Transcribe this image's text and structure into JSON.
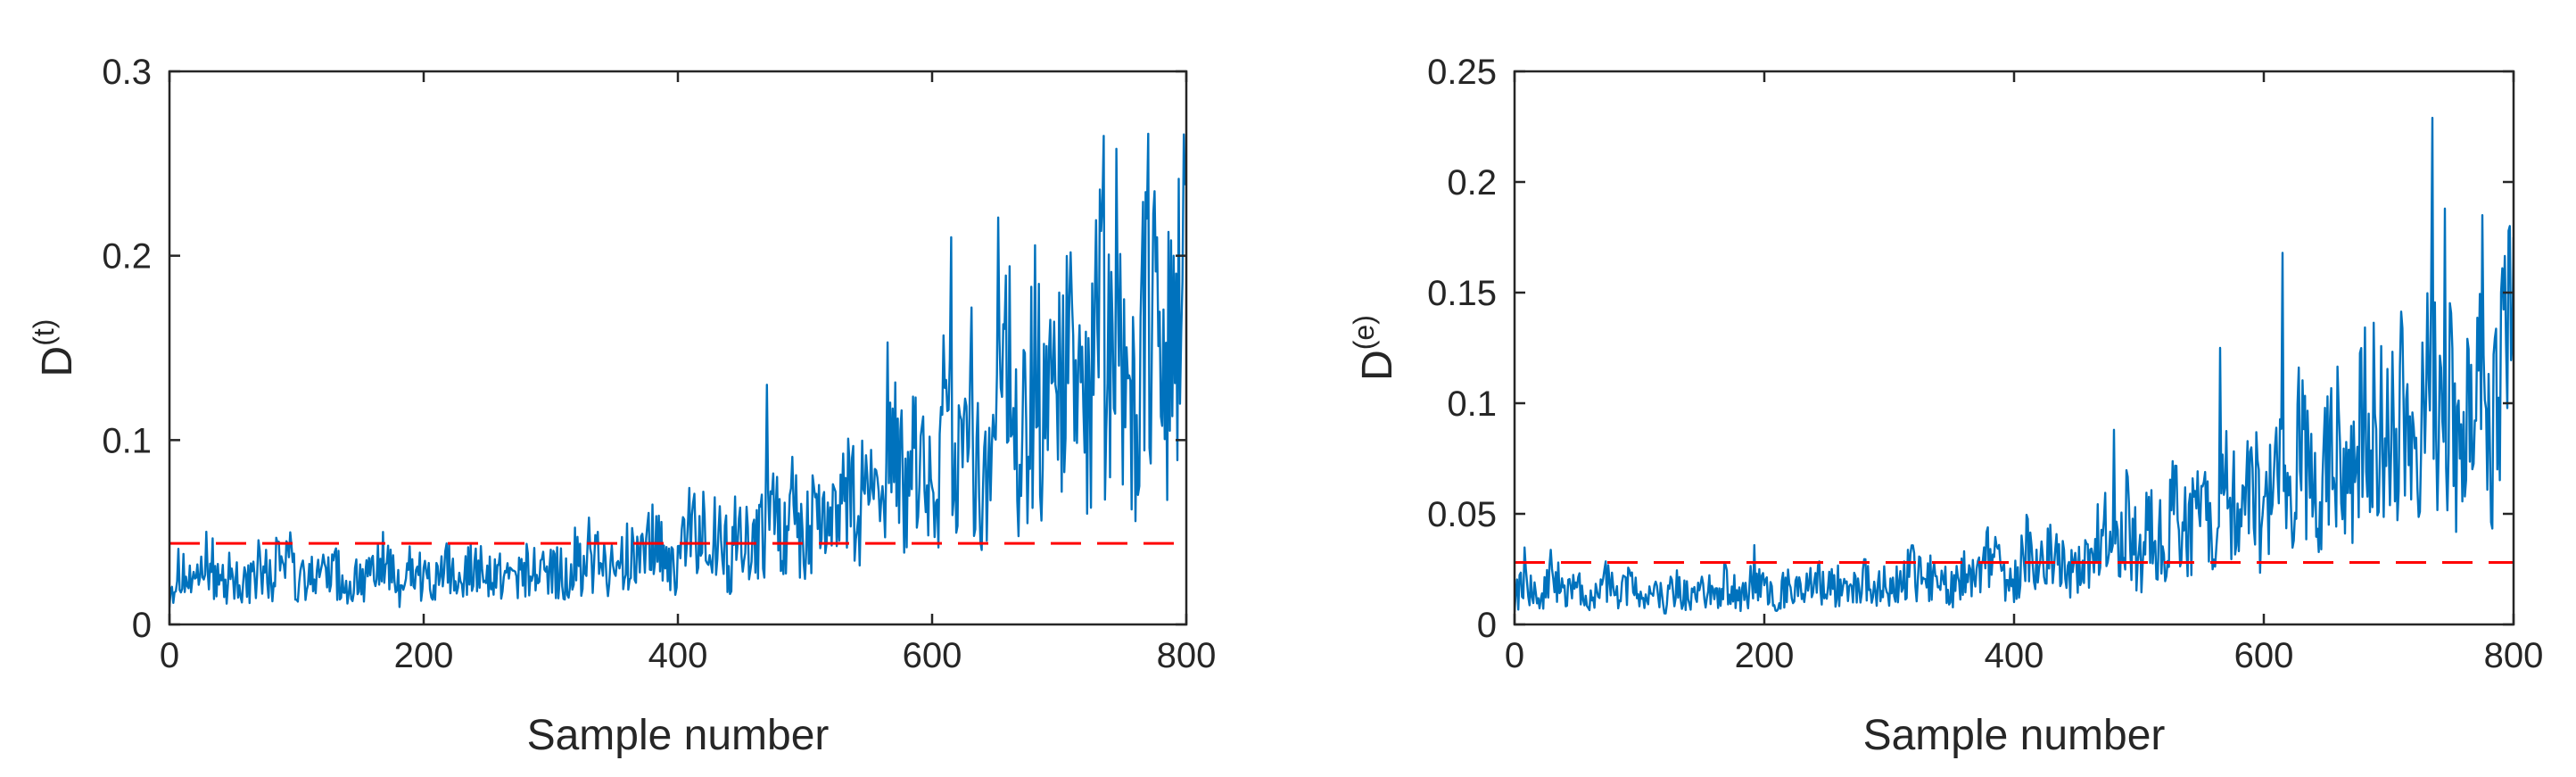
{
  "chart_data": [
    {
      "type": "line",
      "title": "",
      "xlabel": "Sample number",
      "ylabel": "D",
      "ylabel_sup": "(t)",
      "xlim": [
        0,
        800
      ],
      "ylim": [
        0,
        0.3
      ],
      "xticks": [
        0,
        200,
        400,
        600,
        800
      ],
      "xtick_labels": [
        "0",
        "200",
        "400",
        "600",
        "800"
      ],
      "yticks": [
        0,
        0.1,
        0.2,
        0.3
      ],
      "ytick_labels": [
        "0",
        "0.1",
        "0.2",
        "0.3"
      ],
      "grid": false,
      "series": [
        {
          "color": "#0072bd",
          "style": "solid",
          "x": [
            0,
            10,
            20,
            30,
            40,
            50,
            60,
            70,
            80,
            90,
            100,
            110,
            120,
            130,
            140,
            150,
            160,
            170,
            180,
            190,
            200,
            210,
            220,
            230,
            240,
            250,
            260,
            270,
            280,
            290,
            300,
            310,
            320,
            330,
            340,
            350,
            360,
            370,
            380,
            390,
            400,
            410,
            420,
            430,
            440,
            450,
            460,
            470,
            480,
            490,
            500,
            510,
            520,
            530,
            540,
            550,
            560,
            570,
            580,
            590,
            600,
            610,
            620,
            630,
            640,
            650,
            660,
            670,
            680,
            690,
            700,
            710,
            720,
            730,
            740,
            750,
            760,
            770,
            780,
            790,
            800
          ],
          "y": [
            0.02,
            0.03,
            0.018,
            0.035,
            0.022,
            0.028,
            0.02,
            0.03,
            0.025,
            0.045,
            0.02,
            0.026,
            0.022,
            0.03,
            0.018,
            0.028,
            0.024,
            0.035,
            0.02,
            0.03,
            0.025,
            0.022,
            0.03,
            0.02,
            0.035,
            0.025,
            0.028,
            0.022,
            0.032,
            0.025,
            0.03,
            0.028,
            0.035,
            0.03,
            0.04,
            0.025,
            0.038,
            0.03,
            0.045,
            0.035,
            0.03,
            0.05,
            0.04,
            0.055,
            0.035,
            0.045,
            0.04,
            0.06,
            0.05,
            0.07,
            0.045,
            0.065,
            0.05,
            0.08,
            0.06,
            0.075,
            0.05,
            0.09,
            0.07,
            0.1,
            0.065,
            0.11,
            0.08,
            0.12,
            0.075,
            0.1,
            0.13,
            0.09,
            0.14,
            0.11,
            0.12,
            0.15,
            0.1,
            0.17,
            0.13,
            0.16,
            0.11,
            0.18,
            0.12,
            0.15,
            0.23
          ]
        },
        {
          "color": "#ff0000",
          "style": "dashed",
          "x": [
            0,
            800
          ],
          "y": [
            0.044,
            0.044
          ]
        }
      ],
      "peaks": {
        "x": [
          95,
          420,
          470,
          565,
          615,
          700,
          735,
          745,
          775,
          790,
          800
        ],
        "y": [
          0.05,
          0.072,
          0.13,
          0.153,
          0.21,
          0.18,
          0.265,
          0.258,
          0.235,
          0.2,
          0.24
        ]
      }
    },
    {
      "type": "line",
      "title": "",
      "xlabel": "Sample number",
      "ylabel": "D",
      "ylabel_sup": "(e)",
      "xlim": [
        0,
        800
      ],
      "ylim": [
        0,
        0.25
      ],
      "xticks": [
        0,
        200,
        400,
        600,
        800
      ],
      "xtick_labels": [
        "0",
        "200",
        "400",
        "600",
        "800"
      ],
      "yticks": [
        0,
        0.05,
        0.1,
        0.15,
        0.2,
        0.25
      ],
      "ytick_labels": [
        "0",
        "0.05",
        "0.1",
        "0.15",
        "0.2",
        "0.25"
      ],
      "grid": false,
      "series": [
        {
          "color": "#0072bd",
          "style": "solid",
          "x": [
            0,
            10,
            20,
            30,
            40,
            50,
            60,
            70,
            80,
            90,
            100,
            110,
            120,
            130,
            140,
            150,
            160,
            170,
            180,
            190,
            200,
            210,
            220,
            230,
            240,
            250,
            260,
            270,
            280,
            290,
            300,
            310,
            320,
            330,
            340,
            350,
            360,
            370,
            380,
            390,
            400,
            410,
            420,
            430,
            440,
            450,
            460,
            470,
            480,
            490,
            500,
            510,
            520,
            530,
            540,
            550,
            560,
            570,
            580,
            590,
            600,
            610,
            620,
            630,
            640,
            650,
            660,
            670,
            680,
            690,
            700,
            710,
            720,
            730,
            740,
            750,
            760,
            770,
            780,
            790,
            800
          ],
          "y": [
            0.012,
            0.02,
            0.008,
            0.025,
            0.012,
            0.018,
            0.01,
            0.02,
            0.015,
            0.018,
            0.012,
            0.016,
            0.01,
            0.018,
            0.012,
            0.016,
            0.014,
            0.02,
            0.012,
            0.018,
            0.015,
            0.012,
            0.02,
            0.014,
            0.022,
            0.016,
            0.018,
            0.014,
            0.02,
            0.016,
            0.018,
            0.02,
            0.024,
            0.018,
            0.026,
            0.016,
            0.024,
            0.02,
            0.03,
            0.022,
            0.02,
            0.032,
            0.026,
            0.035,
            0.024,
            0.03,
            0.028,
            0.04,
            0.035,
            0.045,
            0.03,
            0.04,
            0.035,
            0.05,
            0.04,
            0.05,
            0.035,
            0.06,
            0.045,
            0.065,
            0.045,
            0.07,
            0.055,
            0.08,
            0.05,
            0.065,
            0.085,
            0.06,
            0.09,
            0.07,
            0.08,
            0.1,
            0.065,
            0.11,
            0.085,
            0.1,
            0.07,
            0.115,
            0.08,
            0.1,
            0.14
          ]
        },
        {
          "color": "#ff0000",
          "style": "dashed",
          "x": [
            0,
            800
          ],
          "y": [
            0.028,
            0.028
          ]
        }
      ],
      "peaks": {
        "x": [
          35,
          480,
          565,
          615,
          735,
          745,
          775,
          790,
          800
        ],
        "y": [
          0.028,
          0.088,
          0.125,
          0.168,
          0.229,
          0.188,
          0.185,
          0.15,
          0.175
        ]
      }
    }
  ]
}
